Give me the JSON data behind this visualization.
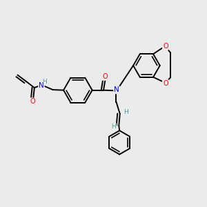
{
  "background_color": "#ebebeb",
  "atom_colors": {
    "C": "#000000",
    "N": "#0000ff",
    "O": "#ff0000",
    "H": "#4a9a9a"
  },
  "bond_color": "#000000",
  "bond_width": 1.4,
  "figsize": [
    3.0,
    3.0
  ],
  "dpi": 100
}
